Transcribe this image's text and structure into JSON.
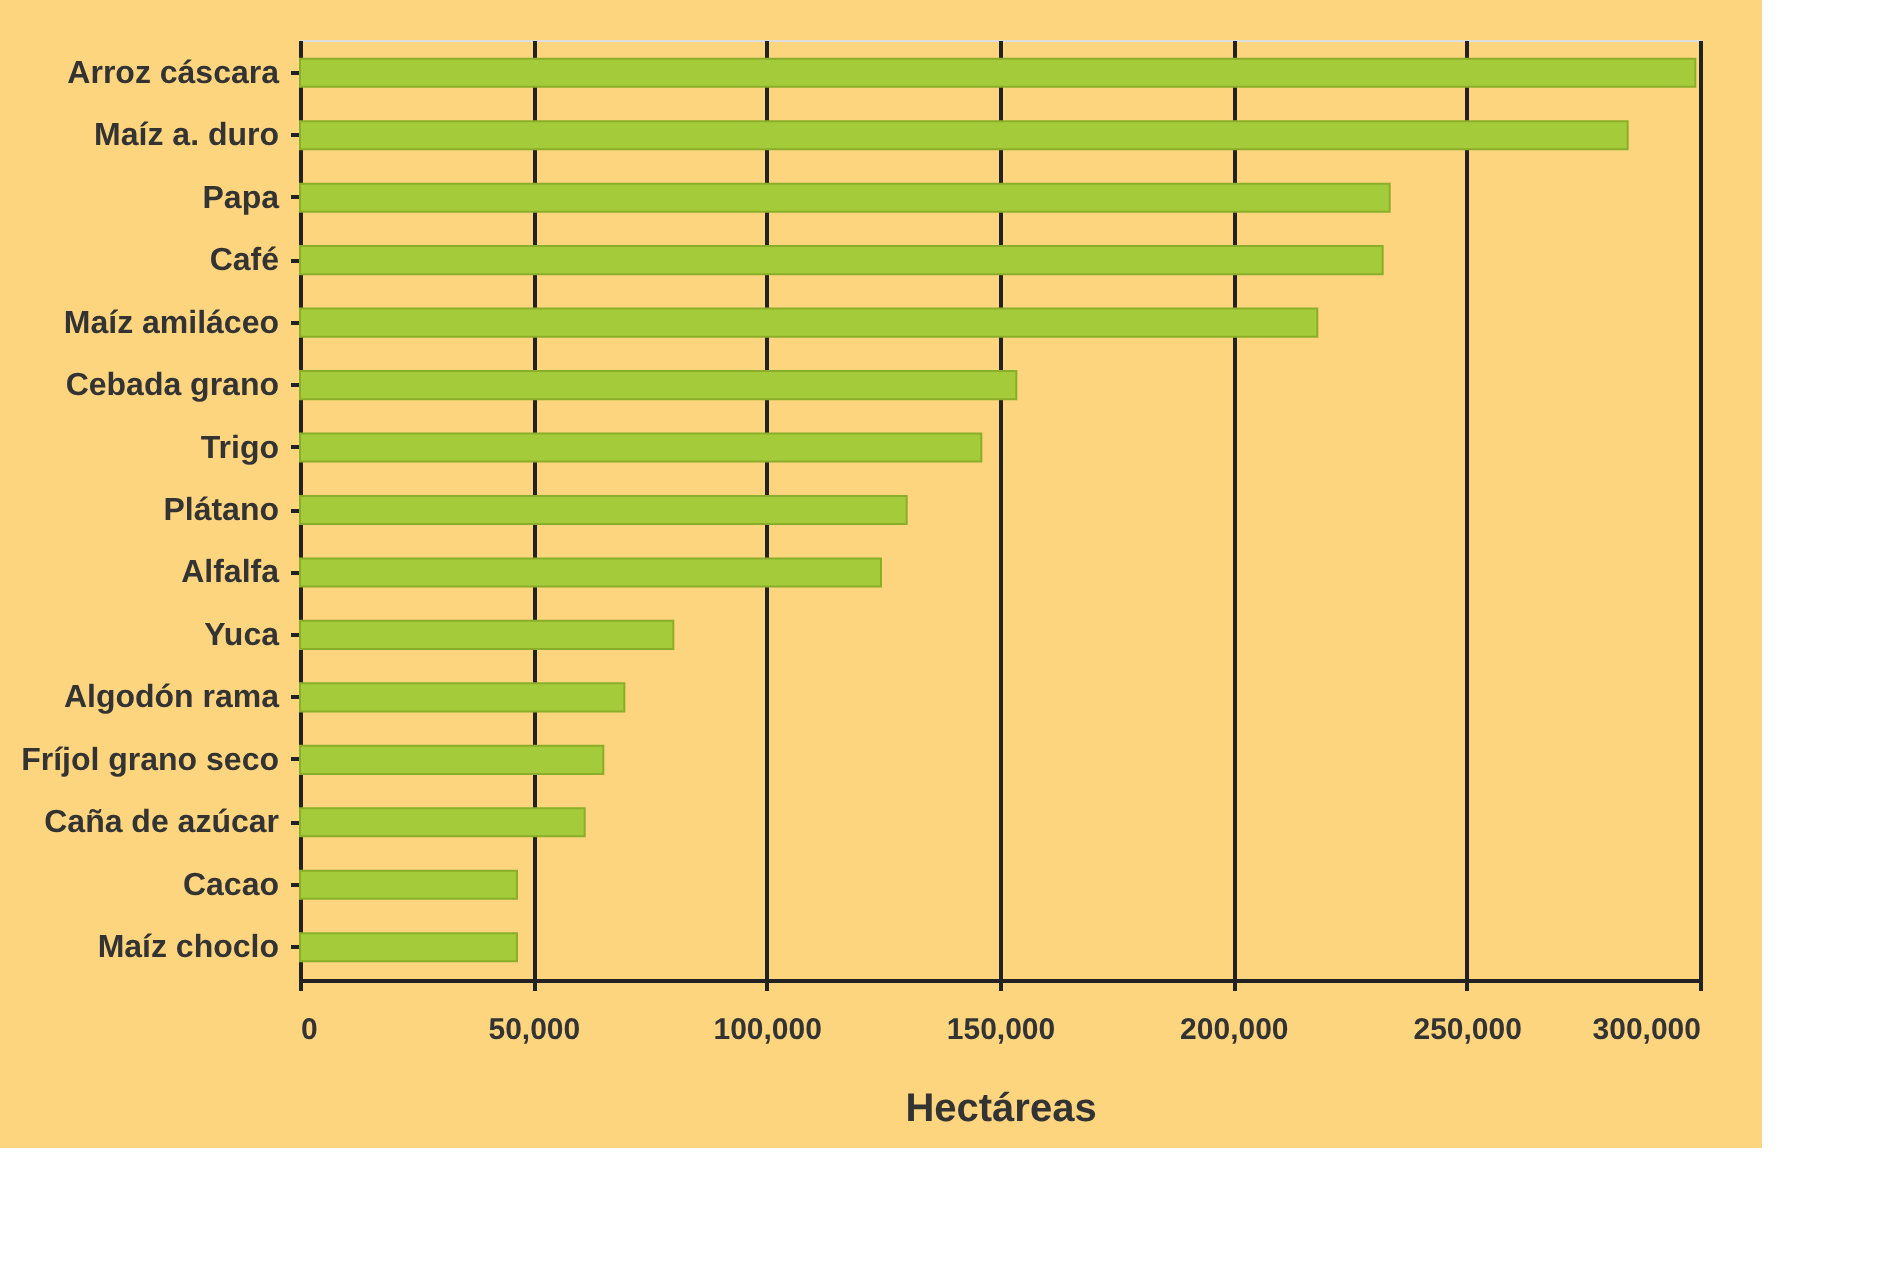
{
  "chart_data": {
    "type": "bar",
    "orientation": "horizontal",
    "xlabel": "Hectáreas",
    "categories": [
      "Arroz cáscara",
      "Maíz a. duro",
      "Papa",
      "Café",
      "Maíz amiláceo",
      "Cebada grano",
      "Trigo",
      "Plátano",
      "Alfalfa",
      "Yuca",
      "Algodón rama",
      "Fríjol grano seco",
      "Caña de azúcar",
      "Cacao",
      "Maíz choclo"
    ],
    "values": [
      299000,
      284500,
      233500,
      232000,
      218000,
      153500,
      146000,
      130000,
      124500,
      80000,
      69500,
      65000,
      61000,
      46500,
      46500
    ],
    "color": "#a4cc3a",
    "xlim": [
      0,
      300000
    ],
    "xticks": [
      0,
      {
        "value": 50000,
        "label": "50,000"
      },
      {
        "value": 100000,
        "label": "100,000"
      },
      {
        "value": 150000,
        "label": "150,000"
      },
      {
        "value": 200000,
        "label": "200,000"
      },
      {
        "value": 250000,
        "label": "250,000"
      },
      {
        "value": 300000,
        "label": "300,000"
      }
    ],
    "grid": "x"
  }
}
